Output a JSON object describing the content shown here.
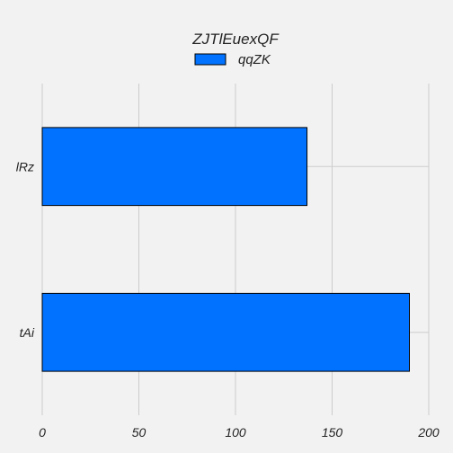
{
  "chart_data": {
    "type": "bar",
    "orientation": "horizontal",
    "title": "ZJTlEuexQF",
    "categories": [
      "lRz",
      "tAi"
    ],
    "series": [
      {
        "name": "qqZK",
        "values": [
          137,
          190
        ]
      }
    ],
    "xlim": [
      0,
      200
    ],
    "x_ticks": [
      "0",
      "50",
      "100",
      "150",
      "200"
    ],
    "grid": true,
    "legend_position": "top-center",
    "colors": {
      "bar_fill": "#0072ff",
      "bar_edge": "#000000",
      "grid": "#cccccc",
      "background": "#f2f2f2"
    }
  }
}
